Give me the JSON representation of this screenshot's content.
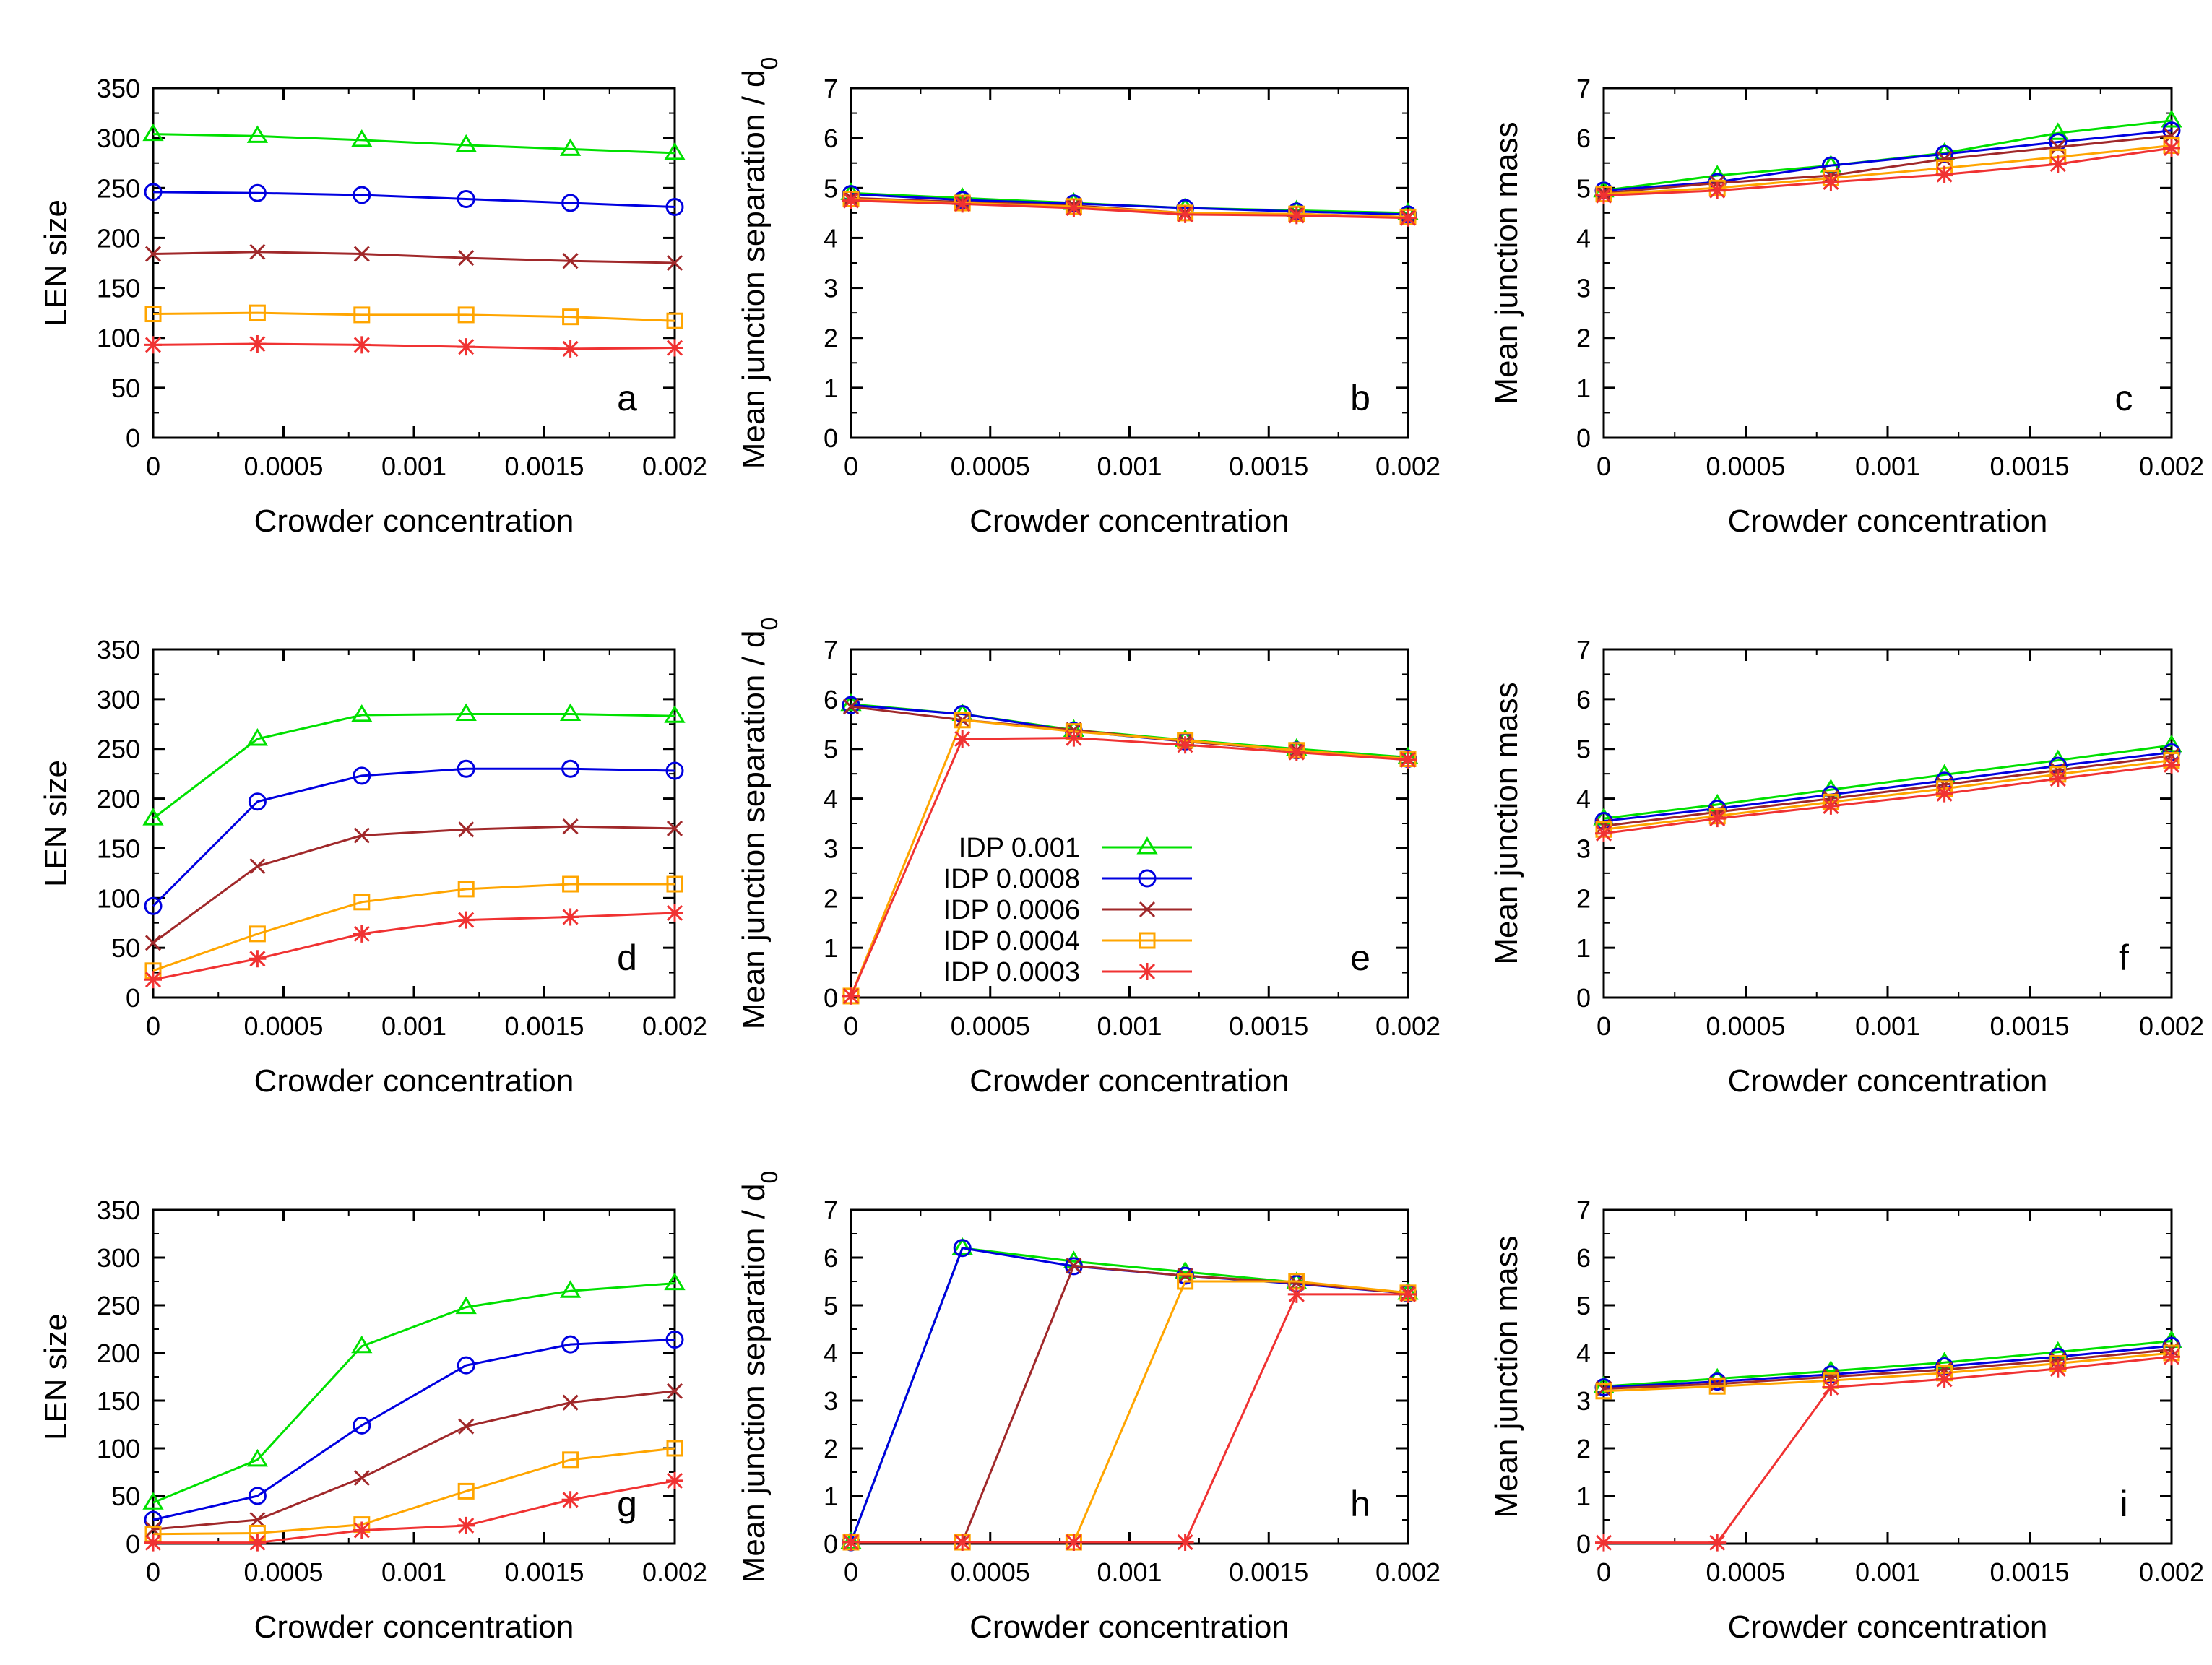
{
  "figure": {
    "xlabel": "Crowder concentration",
    "ylabel_len": "LEN size",
    "ylabel_sep": "Mean junction separation / d",
    "ylabel_sep_sub": "0",
    "ylabel_mass": "Mean junction mass"
  },
  "legend": [
    {
      "label": "IDP 0.001",
      "color": "#00e000",
      "marker": "triangle"
    },
    {
      "label": "IDP 0.0008",
      "color": "#0000e0",
      "marker": "circle"
    },
    {
      "label": "IDP 0.0006",
      "color": "#a0282a",
      "marker": "cross"
    },
    {
      "label": "IDP 0.0004",
      "color": "#ffa500",
      "marker": "square"
    },
    {
      "label": "IDP 0.0003",
      "color": "#f03232",
      "marker": "star"
    }
  ],
  "chart_data": [
    {
      "panel": "a",
      "type": "line",
      "ylabel": "LEN size",
      "xlabel": "Crowder concentration",
      "x": [
        0,
        0.0004,
        0.0008,
        0.0012,
        0.0016,
        0.002
      ],
      "ylim": [
        0,
        350
      ],
      "yticks": [
        0,
        50,
        100,
        150,
        200,
        250,
        300,
        350
      ],
      "series": [
        {
          "name": "IDP 0.001",
          "values": [
            304,
            302,
            298,
            293,
            289,
            285
          ]
        },
        {
          "name": "IDP 0.0008",
          "values": [
            246,
            245,
            243,
            239,
            235,
            231
          ]
        },
        {
          "name": "IDP 0.0006",
          "values": [
            184,
            186,
            184,
            180,
            177,
            175
          ]
        },
        {
          "name": "IDP 0.0004",
          "values": [
            124,
            125,
            123,
            123,
            121,
            117
          ]
        },
        {
          "name": "IDP 0.0003",
          "values": [
            93,
            94,
            93,
            91,
            89,
            90
          ]
        }
      ]
    },
    {
      "panel": "b",
      "type": "line",
      "ylabel": "Mean junction separation / d0",
      "xlabel": "Crowder concentration",
      "x": [
        0,
        0.0004,
        0.0008,
        0.0012,
        0.0016,
        0.002
      ],
      "ylim": [
        0,
        7
      ],
      "yticks": [
        0,
        1,
        2,
        3,
        4,
        5,
        6,
        7
      ],
      "series": [
        {
          "name": "IDP 0.001",
          "values": [
            4.9,
            4.8,
            4.7,
            4.6,
            4.55,
            4.5
          ]
        },
        {
          "name": "IDP 0.0008",
          "values": [
            4.88,
            4.76,
            4.69,
            4.6,
            4.53,
            4.47
          ]
        },
        {
          "name": "IDP 0.0006",
          "values": [
            4.8,
            4.72,
            4.65,
            4.5,
            4.48,
            4.42
          ]
        },
        {
          "name": "IDP 0.0004",
          "values": [
            4.78,
            4.7,
            4.63,
            4.5,
            4.48,
            4.42
          ]
        },
        {
          "name": "IDP 0.0003",
          "values": [
            4.75,
            4.68,
            4.6,
            4.47,
            4.45,
            4.4
          ]
        }
      ]
    },
    {
      "panel": "c",
      "type": "line",
      "ylabel": "Mean junction mass",
      "xlabel": "Crowder concentration",
      "x": [
        0,
        0.0004,
        0.0008,
        0.0012,
        0.0016,
        0.002
      ],
      "ylim": [
        0,
        7
      ],
      "yticks": [
        0,
        1,
        2,
        3,
        4,
        5,
        6,
        7
      ],
      "series": [
        {
          "name": "IDP 0.001",
          "values": [
            4.95,
            5.25,
            5.45,
            5.7,
            6.1,
            6.35
          ]
        },
        {
          "name": "IDP 0.0008",
          "values": [
            4.95,
            5.12,
            5.45,
            5.68,
            5.92,
            6.15
          ]
        },
        {
          "name": "IDP 0.0006",
          "values": [
            4.9,
            5.1,
            5.25,
            5.58,
            5.82,
            6.05
          ]
        },
        {
          "name": "IDP 0.0004",
          "values": [
            4.88,
            5.0,
            5.2,
            5.4,
            5.62,
            5.85
          ]
        },
        {
          "name": "IDP 0.0003",
          "values": [
            4.85,
            4.95,
            5.12,
            5.27,
            5.48,
            5.8
          ]
        }
      ]
    },
    {
      "panel": "d",
      "type": "line",
      "ylabel": "LEN size",
      "xlabel": "Crowder concentration",
      "x": [
        0,
        0.0004,
        0.0008,
        0.0012,
        0.0016,
        0.002
      ],
      "ylim": [
        0,
        350
      ],
      "yticks": [
        0,
        50,
        100,
        150,
        200,
        250,
        300,
        350
      ],
      "series": [
        {
          "name": "IDP 0.001",
          "values": [
            180,
            260,
            284,
            285,
            285,
            283
          ]
        },
        {
          "name": "IDP 0.0008",
          "values": [
            92,
            197,
            223,
            230,
            230,
            228
          ]
        },
        {
          "name": "IDP 0.0006",
          "values": [
            55,
            132,
            163,
            169,
            172,
            170
          ]
        },
        {
          "name": "IDP 0.0004",
          "values": [
            27,
            64,
            96,
            109,
            114,
            114
          ]
        },
        {
          "name": "IDP 0.0003",
          "values": [
            18,
            39,
            64,
            78,
            81,
            85
          ]
        }
      ]
    },
    {
      "panel": "e",
      "type": "line",
      "ylabel": "Mean junction separation / d0",
      "xlabel": "Crowder concentration",
      "x": [
        0,
        0.0004,
        0.0008,
        0.0012,
        0.0016,
        0.002
      ],
      "ylim": [
        0,
        7
      ],
      "yticks": [
        0,
        1,
        2,
        3,
        4,
        5,
        6,
        7
      ],
      "legend_position": "bottom-left",
      "series": [
        {
          "name": "IDP 0.001",
          "values": [
            5.9,
            5.7,
            5.38,
            5.18,
            5.0,
            4.83
          ]
        },
        {
          "name": "IDP 0.0008",
          "values": [
            5.88,
            5.7,
            5.36,
            5.15,
            4.97,
            4.8
          ]
        },
        {
          "name": "IDP 0.0006",
          "values": [
            5.85,
            5.58,
            5.38,
            5.15,
            4.97,
            4.8
          ]
        },
        {
          "name": "IDP 0.0004",
          "values": [
            0.03,
            5.58,
            5.35,
            5.17,
            4.97,
            4.8
          ]
        },
        {
          "name": "IDP 0.0003",
          "values": [
            0.03,
            5.2,
            5.22,
            5.08,
            4.93,
            4.78
          ]
        }
      ]
    },
    {
      "panel": "f",
      "type": "line",
      "ylabel": "Mean junction mass",
      "xlabel": "Crowder concentration",
      "x": [
        0,
        0.0004,
        0.0008,
        0.0012,
        0.0016,
        0.002
      ],
      "ylim": [
        0,
        7
      ],
      "yticks": [
        0,
        1,
        2,
        3,
        4,
        5,
        6,
        7
      ],
      "series": [
        {
          "name": "IDP 0.001",
          "values": [
            3.6,
            3.88,
            4.18,
            4.48,
            4.77,
            5.07
          ]
        },
        {
          "name": "IDP 0.0008",
          "values": [
            3.55,
            3.8,
            4.08,
            4.36,
            4.66,
            4.93
          ]
        },
        {
          "name": "IDP 0.0006",
          "values": [
            3.45,
            3.73,
            4.0,
            4.28,
            4.57,
            4.86
          ]
        },
        {
          "name": "IDP 0.0004",
          "values": [
            3.38,
            3.65,
            3.93,
            4.2,
            4.49,
            4.77
          ]
        },
        {
          "name": "IDP 0.0003",
          "values": [
            3.3,
            3.6,
            3.85,
            4.1,
            4.4,
            4.68
          ]
        }
      ]
    },
    {
      "panel": "g",
      "type": "line",
      "ylabel": "LEN size",
      "xlabel": "Crowder concentration",
      "x": [
        0,
        0.0004,
        0.0008,
        0.0012,
        0.0016,
        0.002
      ],
      "ylim": [
        0,
        350
      ],
      "yticks": [
        0,
        50,
        100,
        150,
        200,
        250,
        300,
        350
      ],
      "series": [
        {
          "name": "IDP 0.001",
          "values": [
            43,
            88,
            207,
            248,
            265,
            273
          ]
        },
        {
          "name": "IDP 0.0008",
          "values": [
            25,
            50,
            124,
            187,
            209,
            214
          ]
        },
        {
          "name": "IDP 0.0006",
          "values": [
            15,
            25,
            69,
            123,
            148,
            160
          ]
        },
        {
          "name": "IDP 0.0004",
          "values": [
            10,
            11,
            20,
            55,
            88,
            100
          ]
        },
        {
          "name": "IDP 0.0003",
          "values": [
            1,
            1,
            14,
            19,
            46,
            66
          ]
        }
      ]
    },
    {
      "panel": "h",
      "type": "line",
      "ylabel": "Mean junction separation / d0",
      "xlabel": "Crowder concentration",
      "x": [
        0,
        0.0004,
        0.0008,
        0.0012,
        0.0016,
        0.002
      ],
      "ylim": [
        0,
        7
      ],
      "yticks": [
        0,
        1,
        2,
        3,
        4,
        5,
        6,
        7
      ],
      "series": [
        {
          "name": "IDP 0.001",
          "values": [
            0.03,
            6.2,
            5.92,
            5.7,
            5.48,
            5.26
          ]
        },
        {
          "name": "IDP 0.0008",
          "values": [
            0.03,
            6.2,
            5.82,
            5.62,
            5.45,
            5.25
          ]
        },
        {
          "name": "IDP 0.0006",
          "values": [
            0.03,
            0.03,
            5.83,
            5.62,
            5.47,
            5.25
          ]
        },
        {
          "name": "IDP 0.0004",
          "values": [
            0.03,
            0.03,
            0.03,
            5.5,
            5.5,
            5.26
          ]
        },
        {
          "name": "IDP 0.0003",
          "values": [
            0.03,
            0.03,
            0.03,
            0.03,
            5.23,
            5.23
          ]
        }
      ]
    },
    {
      "panel": "i",
      "type": "line",
      "ylabel": "Mean junction mass",
      "xlabel": "Crowder concentration",
      "x": [
        0,
        0.0004,
        0.0008,
        0.0012,
        0.0016,
        0.002
      ],
      "ylim": [
        0,
        7
      ],
      "yticks": [
        0,
        1,
        2,
        3,
        4,
        5,
        6,
        7
      ],
      "series": [
        {
          "name": "IDP 0.001",
          "values": [
            3.3,
            3.46,
            3.62,
            3.8,
            4.02,
            4.25
          ]
        },
        {
          "name": "IDP 0.0008",
          "values": [
            3.28,
            3.4,
            3.55,
            3.72,
            3.92,
            4.15
          ]
        },
        {
          "name": "IDP 0.0006",
          "values": [
            3.25,
            3.35,
            3.5,
            3.65,
            3.85,
            4.07
          ]
        },
        {
          "name": "IDP 0.0004",
          "values": [
            3.2,
            3.3,
            3.42,
            3.58,
            3.78,
            4.0
          ]
        },
        {
          "name": "IDP 0.0003",
          "values": [
            0.02,
            0.02,
            3.28,
            3.45,
            3.67,
            3.92
          ]
        }
      ]
    }
  ]
}
